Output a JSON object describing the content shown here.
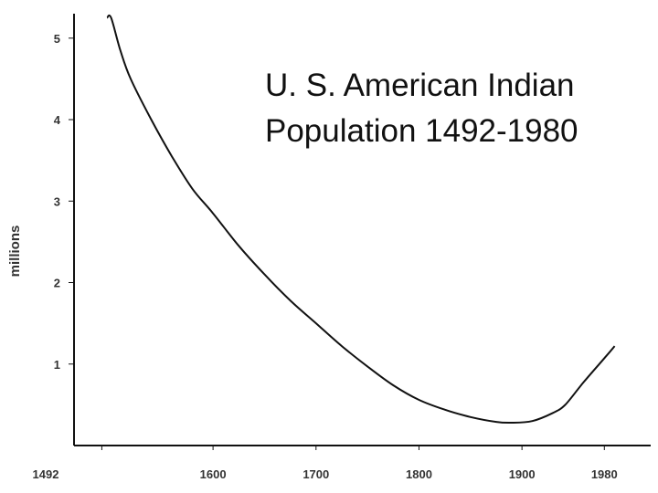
{
  "chart_data": {
    "type": "line",
    "title_lines": [
      "U. S. American Indian",
      "Population 1492-1980"
    ],
    "xlabel": "",
    "ylabel": "millions",
    "x_ticks": [
      {
        "value": 1492,
        "label": "1492"
      },
      {
        "value": 1600,
        "label": "1600"
      },
      {
        "value": 1700,
        "label": "1700"
      },
      {
        "value": 1800,
        "label": "1800"
      },
      {
        "value": 1900,
        "label": "1900"
      },
      {
        "value": 1980,
        "label": "1980"
      }
    ],
    "y_ticks": [
      {
        "value": 1,
        "label": "1"
      },
      {
        "value": 2,
        "label": "2"
      },
      {
        "value": 3,
        "label": "3"
      },
      {
        "value": 4,
        "label": "4"
      },
      {
        "value": 5,
        "label": "5"
      }
    ],
    "xlim": [
      1465,
      2025
    ],
    "ylim": [
      0,
      5.3
    ],
    "grid": false,
    "series": [
      {
        "color": "#111111",
        "points": [
          [
            1497,
            5.25
          ],
          [
            1501,
            5.25
          ],
          [
            1510,
            4.85
          ],
          [
            1520,
            4.5
          ],
          [
            1540,
            4.0
          ],
          [
            1560,
            3.55
          ],
          [
            1580,
            3.15
          ],
          [
            1600,
            2.85
          ],
          [
            1625,
            2.45
          ],
          [
            1650,
            2.1
          ],
          [
            1675,
            1.78
          ],
          [
            1700,
            1.5
          ],
          [
            1725,
            1.22
          ],
          [
            1750,
            0.97
          ],
          [
            1775,
            0.74
          ],
          [
            1800,
            0.56
          ],
          [
            1825,
            0.44
          ],
          [
            1850,
            0.35
          ],
          [
            1875,
            0.29
          ],
          [
            1890,
            0.28
          ],
          [
            1910,
            0.3
          ],
          [
            1930,
            0.4
          ],
          [
            1942,
            0.5
          ],
          [
            1960,
            0.78
          ],
          [
            1982,
            1.1
          ],
          [
            1990,
            1.22
          ]
        ]
      }
    ]
  }
}
